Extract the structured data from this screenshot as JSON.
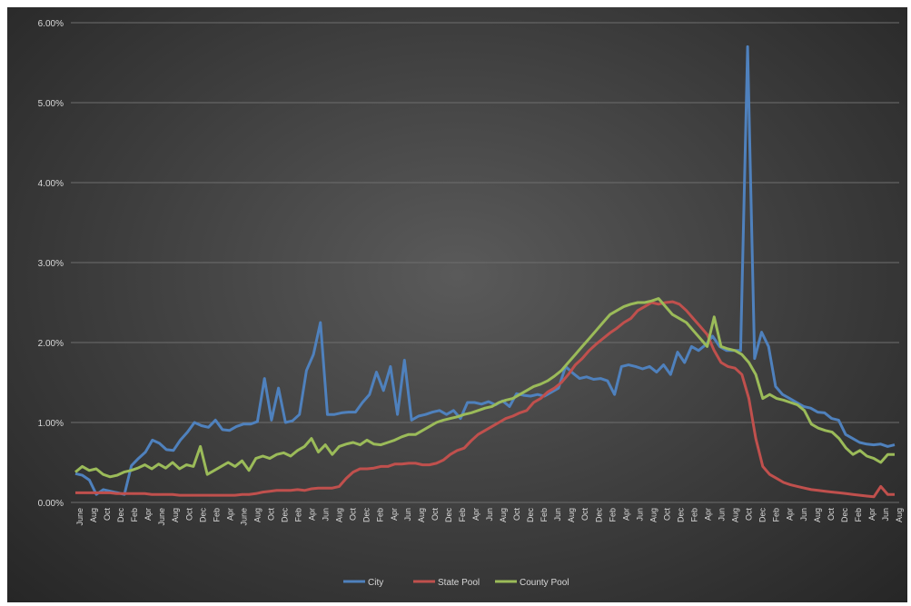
{
  "chart_data": {
    "type": "line",
    "title": "",
    "xlabel": "",
    "ylabel": "",
    "ylim": [
      0,
      0.06
    ],
    "y_ticks": [
      0,
      0.01,
      0.02,
      0.03,
      0.04,
      0.05,
      0.06
    ],
    "y_tick_labels": [
      "0.00%",
      "1.00%",
      "2.00%",
      "3.00%",
      "4.00%",
      "5.00%",
      "6.00%"
    ],
    "grid": true,
    "legend_position": "bottom",
    "x_tick_labels": [
      "June",
      "Aug",
      "Oct",
      "Dec",
      "Feb",
      "Apr",
      "June",
      "Aug",
      "Oct",
      "Dec",
      "Feb",
      "Apr",
      "June",
      "Aug",
      "Oct",
      "Dec",
      "Feb",
      "Apr",
      "Jun",
      "Aug",
      "Oct",
      "Dec",
      "Feb",
      "Apr",
      "Jun",
      "Aug",
      "Oct",
      "Dec",
      "Feb",
      "Apr",
      "Jun",
      "Aug",
      "Oct",
      "Dec",
      "Feb",
      "Jun",
      "Aug",
      "Oct",
      "Dec",
      "Feb",
      "Apr",
      "Jun",
      "Aug",
      "Oct",
      "Dec",
      "Feb",
      "Apr",
      "Jun",
      "Aug",
      "Oct",
      "Dec",
      "Feb",
      "Apr",
      "Jun",
      "Aug",
      "Oct",
      "Dec",
      "Feb",
      "Apr",
      "Jun",
      "Aug"
    ],
    "series": [
      {
        "name": "City",
        "color": "#4f81bd",
        "values": [
          0.0036,
          0.0034,
          0.0028,
          0.001,
          0.0016,
          0.0014,
          0.0012,
          0.001,
          0.0046,
          0.0055,
          0.0063,
          0.0078,
          0.0074,
          0.0066,
          0.0065,
          0.0078,
          0.0088,
          0.01,
          0.0096,
          0.0094,
          0.0103,
          0.0091,
          0.009,
          0.0095,
          0.0098,
          0.0098,
          0.0101,
          0.0155,
          0.0103,
          0.0143,
          0.01,
          0.0102,
          0.011,
          0.0165,
          0.0185,
          0.0225,
          0.011,
          0.011,
          0.0112,
          0.0113,
          0.0113,
          0.0125,
          0.0135,
          0.0163,
          0.014,
          0.017,
          0.011,
          0.0178,
          0.0103,
          0.0108,
          0.011,
          0.0113,
          0.0115,
          0.011,
          0.0115,
          0.0105,
          0.0125,
          0.0125,
          0.0123,
          0.0126,
          0.0122,
          0.0127,
          0.012,
          0.0136,
          0.0134,
          0.0133,
          0.0135,
          0.0133,
          0.0138,
          0.0143,
          0.017,
          0.0162,
          0.0155,
          0.0157,
          0.0154,
          0.0155,
          0.0152,
          0.0135,
          0.017,
          0.0172,
          0.017,
          0.0167,
          0.017,
          0.0163,
          0.0172,
          0.016,
          0.0188,
          0.0175,
          0.0195,
          0.019,
          0.0197,
          0.0208,
          0.0195,
          0.019,
          0.019,
          0.019,
          0.057,
          0.018,
          0.0213,
          0.0195,
          0.0145,
          0.0135,
          0.013,
          0.0125,
          0.012,
          0.0118,
          0.0113,
          0.0112,
          0.0105,
          0.0103,
          0.0085,
          0.008,
          0.0075,
          0.0073,
          0.0072,
          0.0073,
          0.007,
          0.0072
        ]
      },
      {
        "name": "State Pool",
        "color": "#c0504d",
        "values": [
          0.0012,
          0.0012,
          0.0012,
          0.0012,
          0.0012,
          0.0012,
          0.0011,
          0.0011,
          0.0011,
          0.0011,
          0.0011,
          0.001,
          0.001,
          0.001,
          0.001,
          0.0009,
          0.0009,
          0.0009,
          0.0009,
          0.0009,
          0.0009,
          0.0009,
          0.0009,
          0.0009,
          0.001,
          0.001,
          0.0011,
          0.0013,
          0.0014,
          0.0015,
          0.0015,
          0.0015,
          0.0016,
          0.0015,
          0.0017,
          0.0018,
          0.0018,
          0.0018,
          0.002,
          0.003,
          0.0038,
          0.0042,
          0.0042,
          0.0043,
          0.0045,
          0.0045,
          0.0048,
          0.0048,
          0.0049,
          0.0049,
          0.0047,
          0.0047,
          0.0049,
          0.0053,
          0.006,
          0.0065,
          0.0068,
          0.0077,
          0.0085,
          0.009,
          0.0095,
          0.01,
          0.0105,
          0.0108,
          0.0112,
          0.0115,
          0.0125,
          0.013,
          0.0138,
          0.0143,
          0.015,
          0.016,
          0.0172,
          0.018,
          0.019,
          0.0198,
          0.0205,
          0.0212,
          0.0218,
          0.0225,
          0.023,
          0.024,
          0.0245,
          0.025,
          0.0248,
          0.025,
          0.0251,
          0.0248,
          0.024,
          0.023,
          0.022,
          0.021,
          0.019,
          0.0175,
          0.017,
          0.0168,
          0.016,
          0.013,
          0.008,
          0.0045,
          0.0035,
          0.003,
          0.0025,
          0.0022,
          0.002,
          0.0018,
          0.0016,
          0.0015,
          0.0014,
          0.0013,
          0.0012,
          0.0011,
          0.001,
          0.0009,
          0.0008,
          0.0007,
          0.002,
          0.001,
          0.001
        ]
      },
      {
        "name": "County Pool",
        "color": "#9bbb59",
        "values": [
          0.0038,
          0.0045,
          0.004,
          0.0042,
          0.0035,
          0.0032,
          0.0034,
          0.0038,
          0.004,
          0.0043,
          0.0047,
          0.0042,
          0.0048,
          0.0043,
          0.005,
          0.0042,
          0.0047,
          0.0045,
          0.007,
          0.0035,
          0.004,
          0.0045,
          0.005,
          0.0045,
          0.0052,
          0.004,
          0.0055,
          0.0058,
          0.0055,
          0.006,
          0.0062,
          0.0058,
          0.0065,
          0.007,
          0.008,
          0.0063,
          0.0072,
          0.006,
          0.007,
          0.0073,
          0.0075,
          0.0072,
          0.0078,
          0.0073,
          0.0072,
          0.0075,
          0.0078,
          0.0082,
          0.0085,
          0.0085,
          0.009,
          0.0095,
          0.01,
          0.0103,
          0.0105,
          0.0107,
          0.011,
          0.0112,
          0.0115,
          0.0118,
          0.012,
          0.0125,
          0.0128,
          0.013,
          0.0135,
          0.014,
          0.0145,
          0.0148,
          0.0152,
          0.0158,
          0.0165,
          0.0175,
          0.0185,
          0.0195,
          0.0205,
          0.0215,
          0.0225,
          0.0235,
          0.024,
          0.0245,
          0.0248,
          0.025,
          0.025,
          0.0252,
          0.0255,
          0.0245,
          0.0235,
          0.023,
          0.0225,
          0.0215,
          0.0205,
          0.0195,
          0.0232,
          0.0195,
          0.0192,
          0.019,
          0.0185,
          0.0175,
          0.016,
          0.013,
          0.0135,
          0.013,
          0.0128,
          0.0125,
          0.0122,
          0.0115,
          0.0098,
          0.0093,
          0.009,
          0.0088,
          0.008,
          0.0068,
          0.006,
          0.0065,
          0.0058,
          0.0055,
          0.005,
          0.006,
          0.006
        ]
      }
    ]
  }
}
